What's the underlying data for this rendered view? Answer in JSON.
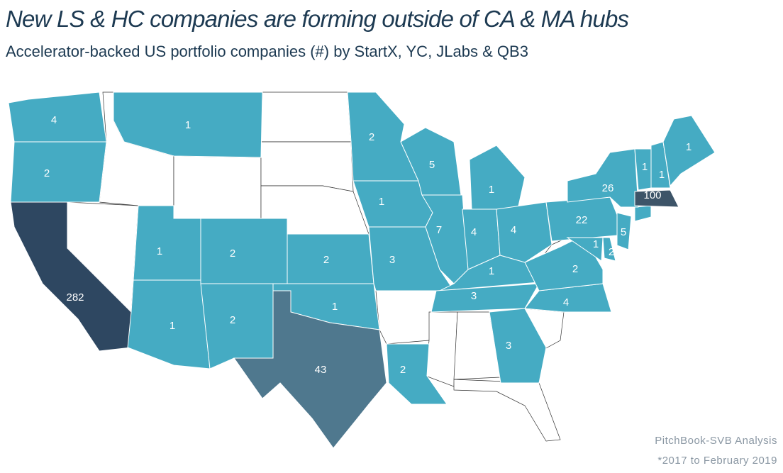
{
  "map_data": {
    "type": "choropleth",
    "title": "New LS & HC companies are forming outside of CA & MA hubs",
    "subtitle": "Accelerator-backed US portfolio companies (#) by StartX, YC, JLabs & QB3",
    "source": "PitchBook-SVB Analysis",
    "note": "*2017 to February 2019",
    "values": [
      4,
      2,
      282,
      1,
      1,
      1,
      2,
      2,
      2,
      1,
      43,
      2,
      1,
      3,
      2,
      5,
      7,
      1,
      4,
      4,
      1,
      3,
      3,
      4,
      2,
      22,
      26,
      1,
      2,
      5,
      100,
      1,
      1,
      1
    ],
    "colors": [
      "#45abc3",
      "#45abc3",
      "#2e4761",
      "#45abc3",
      "#45abc3",
      "#45abc3",
      "#45abc3",
      "#45abc3",
      "#45abc3",
      "#45abc3",
      "#4f788e",
      "#45abc3",
      "#45abc3",
      "#45abc3",
      "#45abc3",
      "#45abc3",
      "#45abc3",
      "#45abc3",
      "#45abc3",
      "#45abc3",
      "#45abc3",
      "#45abc3",
      "#45abc3",
      "#45abc3",
      "#45abc3",
      "#45abc3",
      "#45abc3",
      "#45abc3",
      "#45abc3",
      "#45abc3",
      "#3d5468",
      "#45abc3",
      "#45abc3",
      "#45abc3"
    ],
    "empty_color": "#ffffff",
    "border_color": "#ffffff"
  }
}
